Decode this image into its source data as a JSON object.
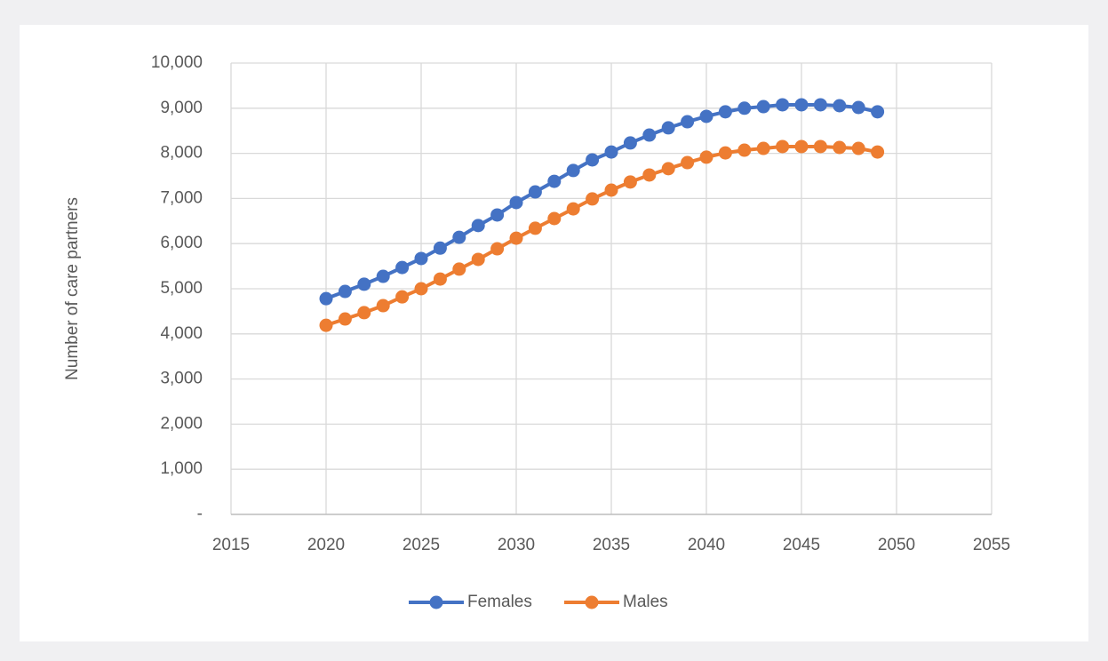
{
  "chart_data": {
    "type": "line",
    "y_label": "Number of care partners",
    "x": [
      2020,
      2021,
      2022,
      2023,
      2024,
      2025,
      2026,
      2027,
      2028,
      2029,
      2030,
      2031,
      2032,
      2033,
      2034,
      2035,
      2036,
      2037,
      2038,
      2039,
      2040,
      2041,
      2042,
      2043,
      2044,
      2045,
      2046,
      2047,
      2048,
      2049
    ],
    "series": [
      {
        "name": "Females",
        "color": "#4472c4",
        "values": [
          4780,
          4940,
          5100,
          5275,
          5470,
          5670,
          5900,
          6140,
          6400,
          6635,
          6910,
          7145,
          7380,
          7620,
          7855,
          8030,
          8230,
          8405,
          8565,
          8700,
          8820,
          8920,
          9000,
          9035,
          9075,
          9075,
          9075,
          9055,
          9015,
          8920
        ]
      },
      {
        "name": "Males",
        "color": "#ed7d31",
        "values": [
          4190,
          4330,
          4470,
          4625,
          4820,
          5000,
          5215,
          5435,
          5650,
          5885,
          6120,
          6340,
          6555,
          6770,
          6990,
          7185,
          7365,
          7520,
          7660,
          7795,
          7915,
          8010,
          8070,
          8110,
          8150,
          8150,
          8150,
          8130,
          8110,
          8030
        ]
      }
    ],
    "xlim": [
      2015,
      2055
    ],
    "xticks": [
      2015,
      2020,
      2025,
      2030,
      2035,
      2040,
      2045,
      2050,
      2055
    ],
    "ylim": [
      0,
      10000
    ],
    "yticks": [
      {
        "value": 0,
        "label": "-"
      },
      {
        "value": 1000,
        "label": "1,000"
      },
      {
        "value": 2000,
        "label": "2,000"
      },
      {
        "value": 3000,
        "label": "3,000"
      },
      {
        "value": 4000,
        "label": "4,000"
      },
      {
        "value": 5000,
        "label": "5,000"
      },
      {
        "value": 6000,
        "label": "6,000"
      },
      {
        "value": 7000,
        "label": "7,000"
      },
      {
        "value": 8000,
        "label": "8,000"
      },
      {
        "value": 9000,
        "label": "9,000"
      },
      {
        "value": 10000,
        "label": "10,000"
      }
    ],
    "grid": true,
    "legend": "bottom"
  }
}
